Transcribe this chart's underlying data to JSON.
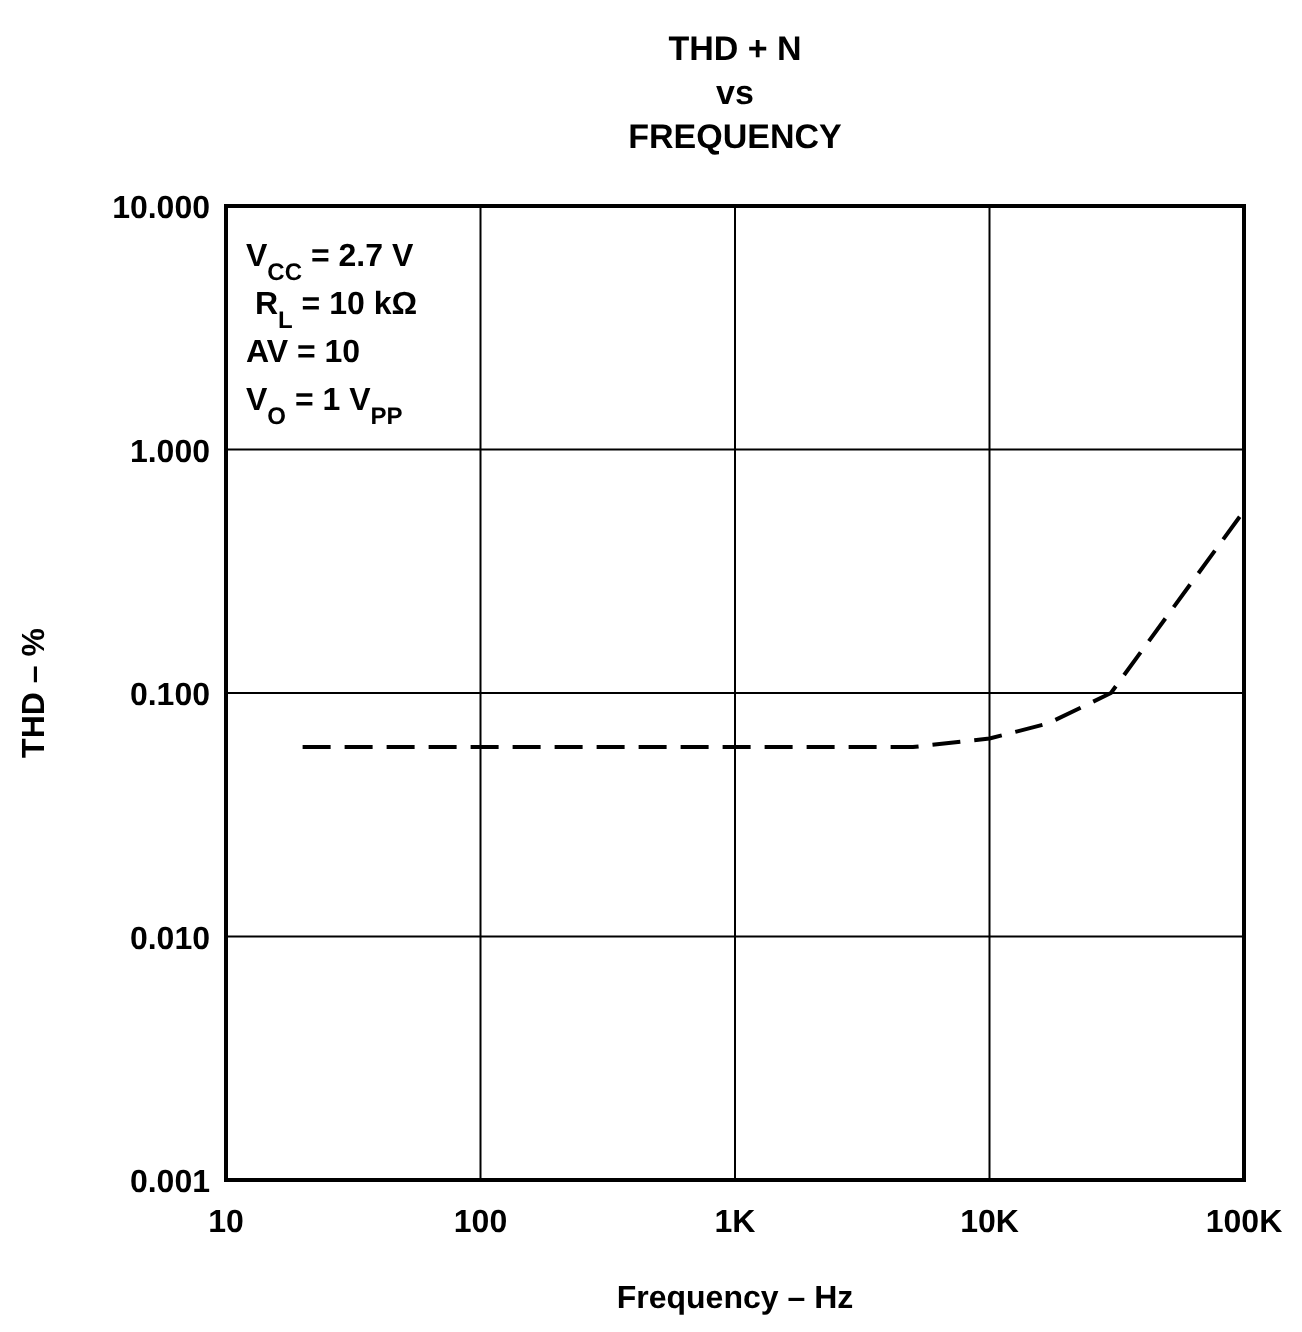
{
  "chart_data": {
    "type": "line",
    "title": "THD + N\nvs\nFREQUENCY",
    "xlabel": "Frequency – Hz",
    "ylabel": "THD – %",
    "annotations": [
      "V$_{CC}$ = 2.7 V",
      " R$_{L}$ = 10 kΩ",
      "AV = 10",
      "V$_{O}$ = 1 V$_{PP}$"
    ],
    "series": [
      {
        "color": "#000000",
        "line_style": "dashed",
        "x": [
          20,
          5000,
          10000,
          17000,
          30000,
          100000
        ],
        "values": [
          0.06,
          0.06,
          0.065,
          0.075,
          0.1,
          0.56
        ]
      }
    ],
    "log": "xy",
    "xlim": [
      10,
      100000
    ],
    "ylim": [
      0.001,
      10
    ],
    "xticks": [
      10,
      100,
      {
        "value": 1000,
        "label": "1K"
      },
      {
        "value": 10000,
        "label": "10K"
      },
      {
        "value": 100000,
        "label": "100K"
      }
    ],
    "yticks": [
      {
        "value": 0.001,
        "label": "0.001"
      },
      {
        "value": 0.01,
        "label": "0.010"
      },
      {
        "value": 0.1,
        "label": "0.100"
      },
      {
        "value": 1,
        "label": "1.000"
      },
      {
        "value": 10,
        "label": "10.000"
      }
    ],
    "grid": true
  }
}
